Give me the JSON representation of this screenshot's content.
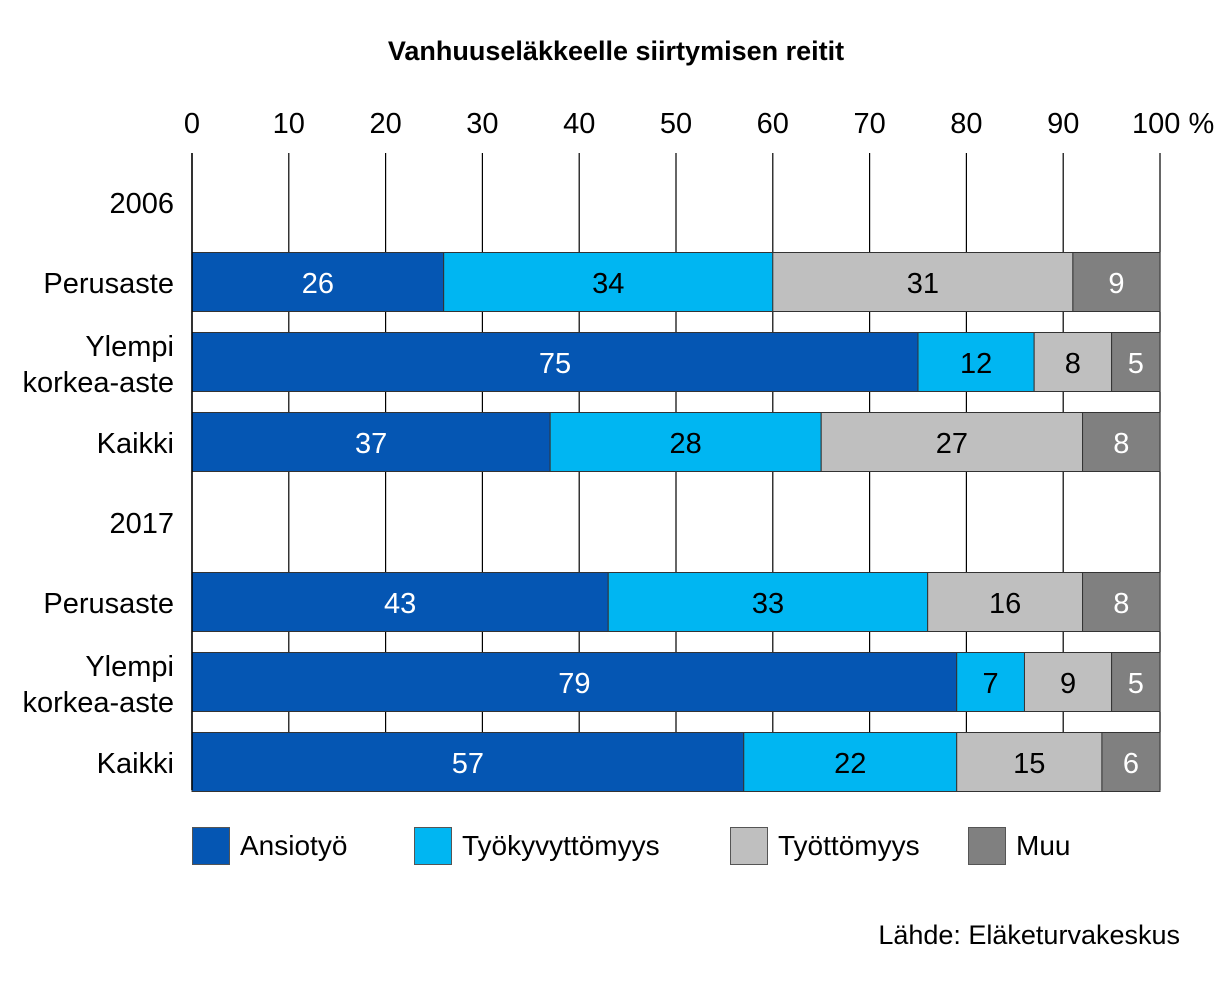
{
  "title": "Vanhuuseläkkeelle siirtymisen reitit",
  "source": "Lähde: Eläketurvakeskus",
  "colors": {
    "ansiotyo": "#0556B3",
    "tyokyvyttomyys": "#00B6F2",
    "tyottomyys": "#BFBFBF",
    "muu": "#808080"
  },
  "chart_data": {
    "type": "bar",
    "orientation": "horizontal",
    "stacked": true,
    "title": "Vanhuuseläkkeelle siirtymisen reitit",
    "xlim": [
      0,
      100
    ],
    "x_ticks": [
      "0",
      "10",
      "20",
      "30",
      "40",
      "50",
      "60",
      "70",
      "80",
      "90",
      "100 %"
    ],
    "grid": true,
    "legend_position": "bottom",
    "groups": [
      {
        "label": "2006",
        "rows": [
          {
            "label": [
              "Perusaste"
            ],
            "values": [
              26,
              34,
              31,
              9
            ]
          },
          {
            "label": [
              "Ylempi",
              "korkea-aste"
            ],
            "values": [
              75,
              12,
              8,
              5
            ]
          },
          {
            "label": [
              "Kaikki"
            ],
            "values": [
              37,
              28,
              27,
              8
            ]
          }
        ]
      },
      {
        "label": "2017",
        "rows": [
          {
            "label": [
              "Perusaste"
            ],
            "values": [
              43,
              33,
              16,
              8
            ]
          },
          {
            "label": [
              "Ylempi",
              "korkea-aste"
            ],
            "values": [
              79,
              7,
              9,
              5
            ]
          },
          {
            "label": [
              "Kaikki"
            ],
            "values": [
              57,
              22,
              15,
              6
            ]
          }
        ]
      }
    ],
    "series": [
      {
        "name": "Ansiotyö",
        "color": "#0556B3",
        "label_color": "#FFFFFF"
      },
      {
        "name": "Työkyvyttömyys",
        "color": "#00B6F2",
        "label_color": "#000000"
      },
      {
        "name": "Työttömyys",
        "color": "#BFBFBF",
        "label_color": "#000000"
      },
      {
        "name": "Muu",
        "color": "#808080",
        "label_color": "#FFFFFF"
      }
    ]
  }
}
